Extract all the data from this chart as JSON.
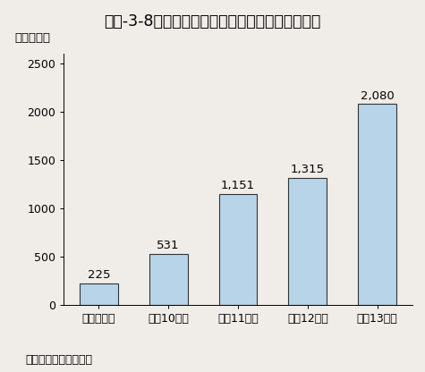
{
  "title": "第３-3-8図　研究開発評価のための予算額の推移",
  "ylabel": "（百万円）",
  "source": "資料：文部科学省調べ",
  "categories": [
    "平成９年度",
    "平成10年度",
    "平成11年度",
    "平成12年度",
    "平成13年度"
  ],
  "values": [
    225,
    531,
    1151,
    1315,
    2080
  ],
  "bar_labels": [
    "225",
    "531",
    "1,151",
    "1,315",
    "2,080"
  ],
  "bar_color": "#b8d4e8",
  "bar_edge_color": "#333333",
  "ylim": [
    0,
    2600
  ],
  "yticks": [
    0,
    500,
    1000,
    1500,
    2000,
    2500
  ],
  "background_color": "#f0ede8",
  "title_fontsize": 12.5,
  "label_fontsize": 9.5,
  "tick_fontsize": 9,
  "source_fontsize": 9
}
